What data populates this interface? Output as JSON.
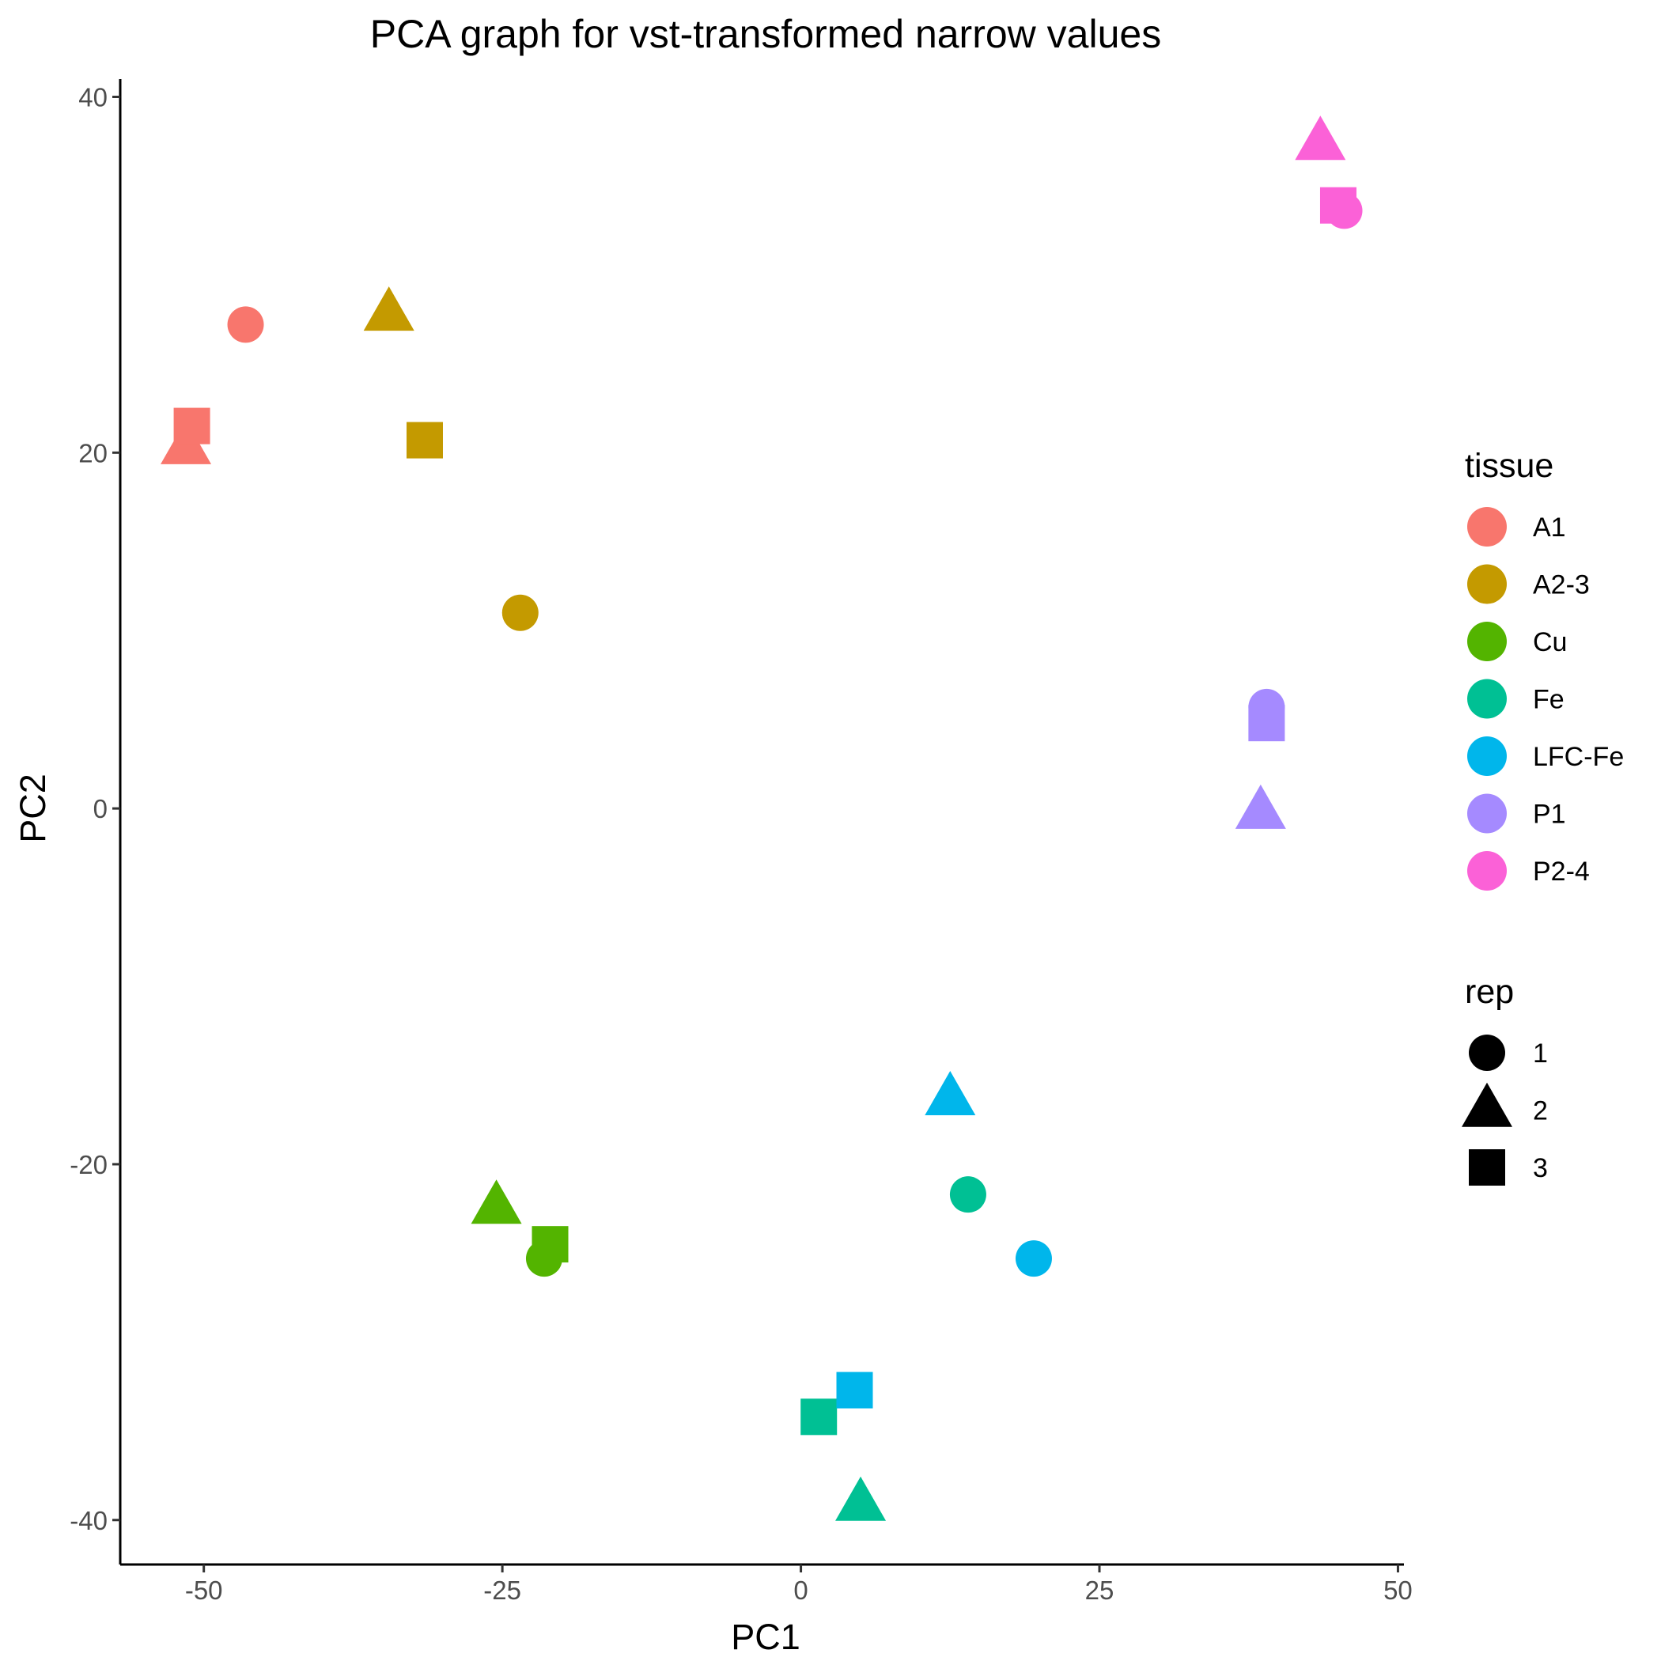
{
  "chart_data": {
    "type": "scatter",
    "title": "PCA graph for vst-transformed narrow values",
    "xlabel": "PC1",
    "ylabel": "PC2",
    "xlim": [
      -57,
      50.5
    ],
    "ylim": [
      -42.5,
      41
    ],
    "xticks": [
      -50,
      -25,
      0,
      25,
      50
    ],
    "yticks": [
      -40,
      -20,
      0,
      20,
      40
    ],
    "grid": false,
    "legend_position": "right",
    "legends": {
      "color": {
        "title": "tissue",
        "entries": [
          {
            "label": "A1",
            "color": "#F8766D"
          },
          {
            "label": "A2-3",
            "color": "#C49A00"
          },
          {
            "label": "Cu",
            "color": "#53B400"
          },
          {
            "label": "Fe",
            "color": "#00C094"
          },
          {
            "label": "LFC-Fe",
            "color": "#00B6EB"
          },
          {
            "label": "P1",
            "color": "#A58AFF"
          },
          {
            "label": "P2-4",
            "color": "#FB61D7"
          }
        ]
      },
      "shape": {
        "title": "rep",
        "entries": [
          {
            "label": "1",
            "shape": "circle"
          },
          {
            "label": "2",
            "shape": "triangle"
          },
          {
            "label": "3",
            "shape": "square"
          }
        ]
      }
    },
    "points": [
      {
        "tissue": "A1",
        "rep": "1",
        "x": -46.5,
        "y": 27.2
      },
      {
        "tissue": "A1",
        "rep": "2",
        "x": -51.5,
        "y": 20.3
      },
      {
        "tissue": "A1",
        "rep": "3",
        "x": -51.0,
        "y": 21.5
      },
      {
        "tissue": "A2-3",
        "rep": "1",
        "x": -23.5,
        "y": 11.0
      },
      {
        "tissue": "A2-3",
        "rep": "2",
        "x": -34.5,
        "y": 27.8
      },
      {
        "tissue": "A2-3",
        "rep": "3",
        "x": -31.5,
        "y": 20.7
      },
      {
        "tissue": "Cu",
        "rep": "1",
        "x": -21.5,
        "y": -25.3
      },
      {
        "tissue": "Cu",
        "rep": "2",
        "x": -25.5,
        "y": -22.4
      },
      {
        "tissue": "Cu",
        "rep": "3",
        "x": -21.0,
        "y": -24.5
      },
      {
        "tissue": "Fe",
        "rep": "1",
        "x": 14.0,
        "y": -21.7
      },
      {
        "tissue": "Fe",
        "rep": "2",
        "x": 5.0,
        "y": -39.1
      },
      {
        "tissue": "Fe",
        "rep": "3",
        "x": 1.5,
        "y": -34.2
      },
      {
        "tissue": "LFC-Fe",
        "rep": "1",
        "x": 19.5,
        "y": -25.3
      },
      {
        "tissue": "LFC-Fe",
        "rep": "2",
        "x": 12.5,
        "y": -16.3
      },
      {
        "tissue": "LFC-Fe",
        "rep": "3",
        "x": 4.5,
        "y": -32.7
      },
      {
        "tissue": "P1",
        "rep": "1",
        "x": 39.0,
        "y": 5.7
      },
      {
        "tissue": "P1",
        "rep": "2",
        "x": 38.5,
        "y": -0.2
      },
      {
        "tissue": "P1",
        "rep": "3",
        "x": 39.0,
        "y": 4.8
      },
      {
        "tissue": "P2-4",
        "rep": "1",
        "x": 45.5,
        "y": 33.6
      },
      {
        "tissue": "P2-4",
        "rep": "2",
        "x": 43.5,
        "y": 37.4
      },
      {
        "tissue": "P2-4",
        "rep": "3",
        "x": 45.0,
        "y": 33.9
      }
    ]
  }
}
